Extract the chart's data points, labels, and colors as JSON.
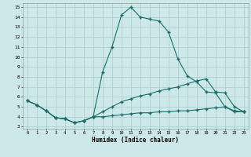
{
  "xlabel": "Humidex (Indice chaleur)",
  "bg_color": "#cce8e8",
  "grid_color": "#aacccc",
  "line_color": "#1a6e6a",
  "xlim": [
    -0.5,
    23.5
  ],
  "ylim": [
    2.8,
    15.4
  ],
  "xticks": [
    0,
    1,
    2,
    3,
    4,
    5,
    6,
    7,
    8,
    9,
    10,
    11,
    12,
    13,
    14,
    15,
    16,
    17,
    18,
    19,
    20,
    21,
    22,
    23
  ],
  "yticks": [
    3,
    4,
    5,
    6,
    7,
    8,
    9,
    10,
    11,
    12,
    13,
    14,
    15
  ],
  "line1_x": [
    0,
    1,
    2,
    3,
    4,
    5,
    6,
    7,
    8,
    9,
    10,
    11,
    12,
    13,
    14,
    15,
    16,
    17,
    18,
    19,
    20,
    21,
    22,
    23
  ],
  "line1_y": [
    5.6,
    5.2,
    4.6,
    3.9,
    3.8,
    3.4,
    3.6,
    4.0,
    8.5,
    11.0,
    14.2,
    15.0,
    14.0,
    13.8,
    13.6,
    12.5,
    9.8,
    8.1,
    7.5,
    6.5,
    6.4,
    5.0,
    4.5,
    4.5
  ],
  "line2_x": [
    0,
    1,
    2,
    3,
    4,
    5,
    6,
    7,
    8,
    9,
    10,
    11,
    12,
    13,
    14,
    15,
    16,
    17,
    18,
    19,
    20,
    21,
    22,
    23
  ],
  "line2_y": [
    5.6,
    5.2,
    4.6,
    3.9,
    3.8,
    3.4,
    3.6,
    4.0,
    4.5,
    5.0,
    5.5,
    5.8,
    6.1,
    6.3,
    6.6,
    6.8,
    7.0,
    7.3,
    7.6,
    7.8,
    6.5,
    6.4,
    5.0,
    4.5
  ],
  "line3_x": [
    0,
    1,
    2,
    3,
    4,
    5,
    6,
    7,
    8,
    9,
    10,
    11,
    12,
    13,
    14,
    15,
    16,
    17,
    18,
    19,
    20,
    21,
    22,
    23
  ],
  "line3_y": [
    5.6,
    5.2,
    4.6,
    3.9,
    3.8,
    3.4,
    3.6,
    4.0,
    4.0,
    4.1,
    4.2,
    4.3,
    4.4,
    4.4,
    4.5,
    4.5,
    4.6,
    4.6,
    4.7,
    4.8,
    4.9,
    5.0,
    4.6,
    4.5
  ]
}
